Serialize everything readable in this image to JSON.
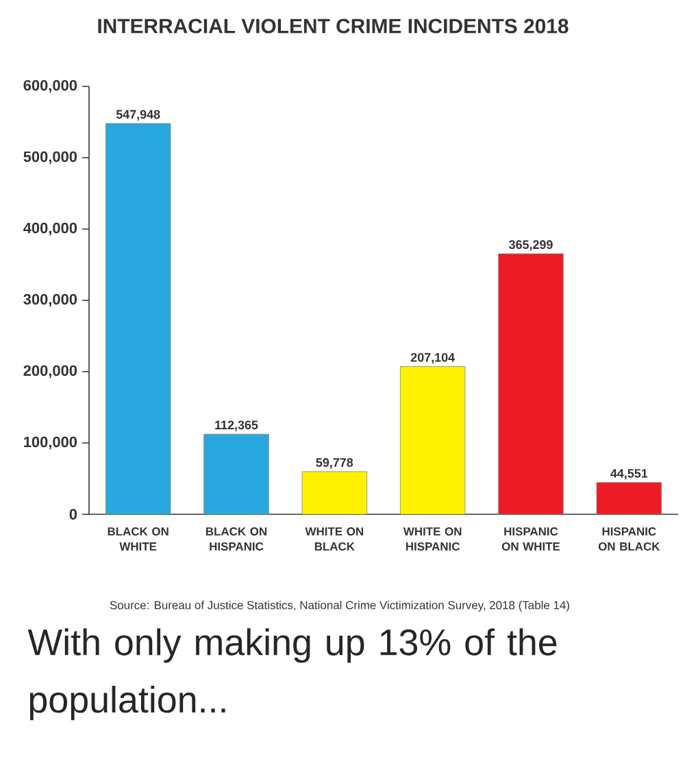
{
  "chart_data": {
    "type": "bar",
    "title": "INTERRACIAL VIOLENT CRIME INCIDENTS 2018",
    "categories": [
      "BLACK ON WHITE",
      "BLACK ON HISPANIC",
      "WHITE ON BLACK",
      "WHITE ON HISPANIC",
      "HISPANIC ON WHITE",
      "HISPANIC ON BLACK"
    ],
    "values": [
      547948,
      112365,
      59778,
      207104,
      365299,
      44551
    ],
    "value_labels": [
      "547,948",
      "112,365",
      "59,778",
      "207,104",
      "365,299",
      "44,551"
    ],
    "colors": [
      "#29a8df",
      "#29a8df",
      "#fff200",
      "#fff200",
      "#ed1c24",
      "#ed1c24"
    ],
    "ylim": [
      0,
      600000
    ],
    "yticks": [
      0,
      {
        "value": 100000,
        "label": "100,000"
      },
      {
        "value": 200000,
        "label": "200,000"
      },
      {
        "value": 300000,
        "label": "300,000"
      },
      {
        "value": 400000,
        "label": "400,000"
      },
      {
        "value": 500000,
        "label": "500,000"
      },
      {
        "value": 600000,
        "label": "600,000"
      }
    ],
    "grid": false,
    "annotations": [
      "Source: Bureau of Justice Statistics, National Crime Victimization Survey, 2018 (Table 14)",
      "With only making up 13% of the population..."
    ]
  }
}
